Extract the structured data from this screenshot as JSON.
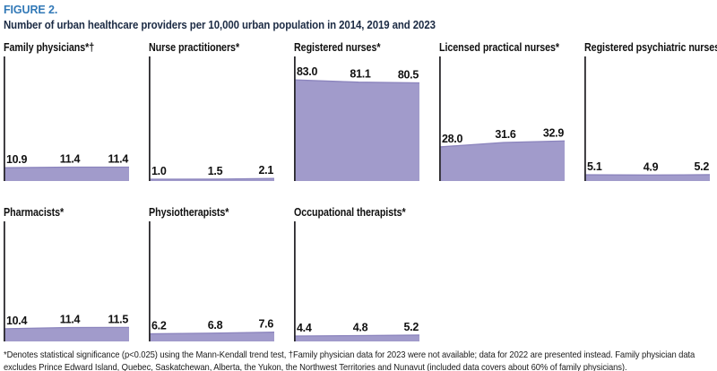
{
  "figure": {
    "label": "FIGURE 2.",
    "title": "Number of urban healthcare providers per 10,000 urban population in 2014, 2019 and 2023"
  },
  "colors": {
    "accent_blue": "#3279b7",
    "title_navy": "#1c2b44",
    "area_fill": "#a19bcb",
    "area_top_edge": "#8b84bd",
    "axis_black": "#2b2a2e"
  },
  "chart_data": {
    "type": "area",
    "categories": [
      2014,
      2019,
      2023
    ],
    "x_axis_visible": false,
    "grid": false,
    "legend": false,
    "value_labels_shown": true,
    "ylim": [
      0,
      102
    ],
    "series": [
      {
        "name": "Family physicians*†",
        "values": [
          10.9,
          11.4,
          11.4
        ]
      },
      {
        "name": "Nurse practitioners*",
        "values": [
          1.0,
          1.5,
          2.1
        ]
      },
      {
        "name": "Registered nurses*",
        "values": [
          83.0,
          81.1,
          80.5
        ]
      },
      {
        "name": "Licensed practical nurses*",
        "values": [
          28.0,
          31.6,
          32.9
        ]
      },
      {
        "name": "Registered psychiatric nurses",
        "values": [
          5.1,
          4.9,
          5.2
        ]
      },
      {
        "name": "Pharmacists*",
        "values": [
          10.4,
          11.4,
          11.5
        ]
      },
      {
        "name": "Physiotherapists*",
        "values": [
          6.2,
          6.8,
          7.6
        ]
      },
      {
        "name": "Occupational therapists*",
        "values": [
          4.4,
          4.8,
          5.2
        ]
      }
    ]
  },
  "footnote": {
    "text": "*Denotes statistical significance (p<0.025) using the Mann-Kendall trend test, †Family physician data for 2023 were not available; data for 2022 are presented instead. Family physician data excludes Prince Edward Island, Quebec, Saskatchewan, Alberta, the Yukon, the Northwest Territories and Nunavut (included data covers about 60% of family physicians)."
  }
}
